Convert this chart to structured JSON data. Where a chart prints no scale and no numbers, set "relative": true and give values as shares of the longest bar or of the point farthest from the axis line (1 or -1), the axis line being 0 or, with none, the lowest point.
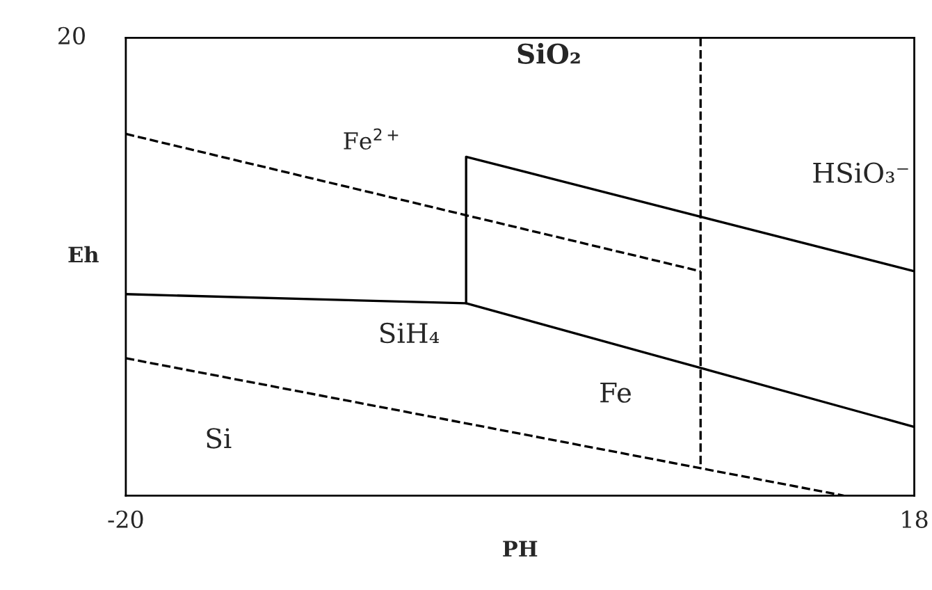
{
  "chart_data": {
    "type": "line",
    "relative": true,
    "xlabel": "PH",
    "ylabel": "Eh",
    "xlim": [
      -20,
      18
    ],
    "xticks": [
      -20,
      18
    ],
    "marker": "none",
    "series": [
      {
        "color": "#000000",
        "line_style": "dashed",
        "x": [
          -20,
          7.7
        ],
        "values": [
          0.79,
          0.49
        ]
      },
      {
        "color": "#000000",
        "line_style": "dashed",
        "x": [
          -20,
          14.6
        ],
        "values": [
          0.3,
          0
        ]
      },
      {
        "color": "#000000",
        "line_style": "dashed",
        "x": [
          7.7,
          7.7
        ],
        "values": [
          1.0,
          0.06
        ]
      },
      {
        "color": "#000000",
        "line_style": "solid",
        "x": [
          -20,
          -3.6,
          18
        ],
        "values": [
          0.44,
          0.42,
          0.15
        ]
      },
      {
        "color": "#000000",
        "line_style": "solid",
        "x": [
          -3.6,
          -3.6,
          18
        ],
        "values": [
          0.42,
          0.74,
          0.49
        ]
      }
    ],
    "annotations": [
      "20",
      "SiO₂",
      "Fe$^{2+}$",
      "HSiO₃⁻",
      "SiH₄",
      "Fe",
      "Si"
    ]
  }
}
